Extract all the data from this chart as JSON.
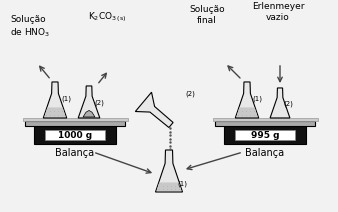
{
  "bg_color": "#f2f2f2",
  "left_balance_weight": "1000 g",
  "right_balance_weight": "995 g",
  "balanca": "Balança",
  "label_solucao": "Solução\nde HNO",
  "label_hno3_sub": "3",
  "label_k2co3": "K$_2$CO$_{3\\,(s)}$",
  "label_solucao_final": "Solução\nfinal",
  "label_erlenmeyer_vazio": "Erlenmeyer\nvazio",
  "label_1": "(1)",
  "label_2": "(2)",
  "arrow_color": "#444444",
  "flask_outline": "#000000",
  "flask_fill": "#e8e8e8",
  "flask_liquid_fill": "#c8c8c8",
  "flask_dots_color": "#999999",
  "powder_fill": "#b0b0b0",
  "platform_fill": "#aaaaaa",
  "balance_body_fill": "#111111",
  "balance_display_fill": "#ffffff",
  "balance_text_color": "#000000"
}
